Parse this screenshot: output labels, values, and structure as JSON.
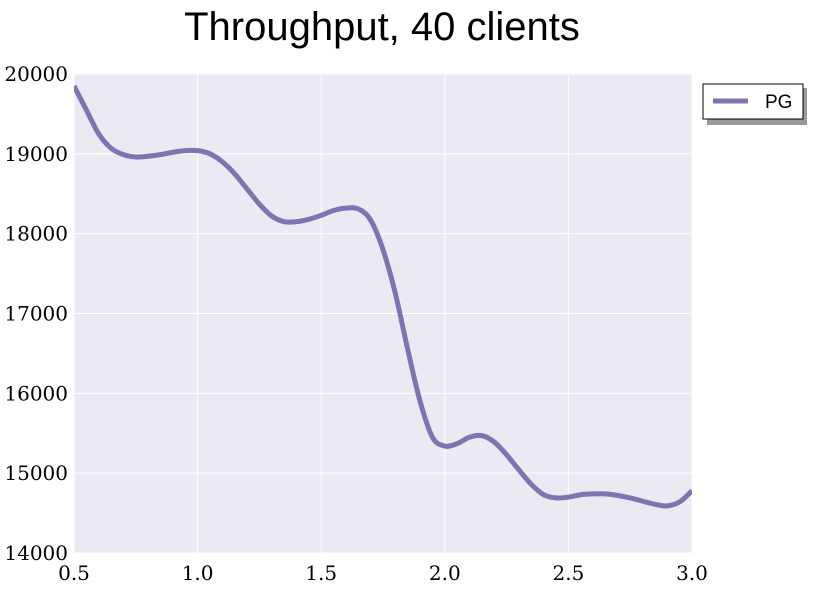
{
  "chart_data": {
    "type": "line",
    "title": "Throughput, 40 clients",
    "xlabel": "",
    "ylabel": "",
    "xlim": [
      0.5,
      3.0
    ],
    "ylim": [
      14000,
      20000
    ],
    "xticks": [
      "0.5",
      "1.0",
      "1.5",
      "2.0",
      "2.5",
      "3.0"
    ],
    "yticks": [
      "14000",
      "15000",
      "16000",
      "17000",
      "18000",
      "19000",
      "20000"
    ],
    "grid": true,
    "legend_position": "outside-top-right",
    "series": [
      {
        "name": "PG",
        "color": "#8172b2",
        "x": [
          0.5,
          0.55,
          0.6,
          0.65,
          0.7,
          0.75,
          0.8,
          0.85,
          0.9,
          0.95,
          1.0,
          1.05,
          1.1,
          1.15,
          1.2,
          1.25,
          1.3,
          1.35,
          1.4,
          1.45,
          1.5,
          1.55,
          1.6,
          1.65,
          1.7,
          1.75,
          1.8,
          1.85,
          1.9,
          1.95,
          2.0,
          2.05,
          2.1,
          2.15,
          2.2,
          2.25,
          2.3,
          2.35,
          2.4,
          2.45,
          2.5,
          2.55,
          2.6,
          2.65,
          2.7,
          2.75,
          2.8,
          2.85,
          2.9,
          2.95,
          3.0
        ],
        "y": [
          19850,
          19550,
          19250,
          19070,
          18990,
          18960,
          18970,
          18990,
          19020,
          19040,
          19040,
          19000,
          18900,
          18750,
          18560,
          18370,
          18220,
          18150,
          18150,
          18180,
          18230,
          18290,
          18320,
          18310,
          18170,
          17800,
          17250,
          16550,
          15900,
          15450,
          15340,
          15370,
          15450,
          15470,
          15390,
          15230,
          15040,
          14860,
          14730,
          14690,
          14700,
          14730,
          14740,
          14740,
          14720,
          14690,
          14650,
          14610,
          14590,
          14640,
          14780
        ]
      }
    ]
  }
}
